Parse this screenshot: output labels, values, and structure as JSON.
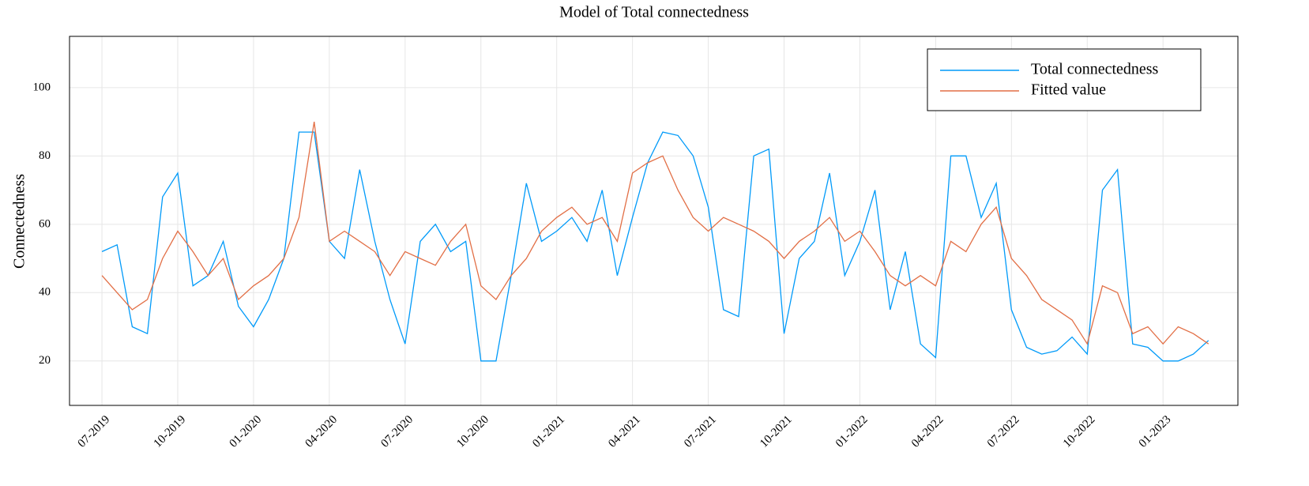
{
  "chart_data": {
    "type": "line",
    "title": "Model of Total connectedness",
    "ylabel": "Connectedness",
    "x": [
      2019.5,
      2019.55,
      2019.6,
      2019.65,
      2019.7,
      2019.75,
      2019.8,
      2019.85,
      2019.9,
      2019.95,
      2020.0,
      2020.05,
      2020.1,
      2020.15,
      2020.2,
      2020.25,
      2020.3,
      2020.35,
      2020.4,
      2020.45,
      2020.5,
      2020.55,
      2020.6,
      2020.65,
      2020.7,
      2020.75,
      2020.8,
      2020.85,
      2020.9,
      2020.95,
      2021.0,
      2021.05,
      2021.1,
      2021.15,
      2021.2,
      2021.25,
      2021.3,
      2021.35,
      2021.4,
      2021.45,
      2021.5,
      2021.55,
      2021.6,
      2021.65,
      2021.7,
      2021.75,
      2021.8,
      2021.85,
      2021.9,
      2021.95,
      2022.0,
      2022.05,
      2022.1,
      2022.15,
      2022.2,
      2022.25,
      2022.3,
      2022.35,
      2022.4,
      2022.45,
      2022.5,
      2022.55,
      2022.6,
      2022.65,
      2022.7,
      2022.75,
      2022.8,
      2022.85,
      2022.9,
      2022.95,
      2023.0,
      2023.05,
      2023.1,
      2023.15
    ],
    "series": [
      {
        "name": "Total connectedness",
        "color": "#009af9",
        "values": [
          52,
          54,
          30,
          28,
          68,
          75,
          42,
          45,
          55,
          36,
          30,
          38,
          50,
          87,
          87,
          55,
          50,
          76,
          55,
          38,
          25,
          55,
          60,
          52,
          55,
          20,
          20,
          45,
          72,
          55,
          58,
          62,
          55,
          70,
          45,
          62,
          78,
          87,
          86,
          80,
          65,
          35,
          33,
          80,
          82,
          28,
          50,
          55,
          75,
          45,
          55,
          70,
          35,
          52,
          25,
          21,
          80,
          80,
          62,
          72,
          35,
          24,
          22,
          23,
          27,
          22,
          70,
          76,
          25,
          24,
          20,
          20,
          22,
          26
        ]
      },
      {
        "name": "Fitted value",
        "color": "#e26f46",
        "values": [
          45,
          40,
          35,
          38,
          50,
          58,
          52,
          45,
          50,
          38,
          42,
          45,
          50,
          62,
          90,
          55,
          58,
          55,
          52,
          45,
          52,
          50,
          48,
          55,
          60,
          42,
          38,
          45,
          50,
          58,
          62,
          65,
          60,
          62,
          55,
          75,
          78,
          80,
          70,
          62,
          58,
          62,
          60,
          58,
          55,
          50,
          55,
          58,
          62,
          55,
          58,
          52,
          45,
          42,
          45,
          42,
          55,
          52,
          60,
          65,
          50,
          45,
          38,
          35,
          32,
          25,
          42,
          40,
          28,
          30,
          25,
          30,
          28,
          25
        ]
      }
    ],
    "xlim": [
      2019.393,
      2023.247
    ],
    "ylim": [
      7,
      115
    ],
    "xticks": [
      {
        "value": 2019.5,
        "label": "07-2019"
      },
      {
        "value": 2019.75,
        "label": "10-2019"
      },
      {
        "value": 2020.0,
        "label": "01-2020"
      },
      {
        "value": 2020.25,
        "label": "04-2020"
      },
      {
        "value": 2020.5,
        "label": "07-2020"
      },
      {
        "value": 2020.75,
        "label": "10-2020"
      },
      {
        "value": 2021.0,
        "label": "01-2021"
      },
      {
        "value": 2021.25,
        "label": "04-2021"
      },
      {
        "value": 2021.5,
        "label": "07-2021"
      },
      {
        "value": 2021.75,
        "label": "10-2021"
      },
      {
        "value": 2022.0,
        "label": "01-2022"
      },
      {
        "value": 2022.25,
        "label": "04-2022"
      },
      {
        "value": 2022.5,
        "label": "07-2022"
      },
      {
        "value": 2022.75,
        "label": "10-2022"
      },
      {
        "value": 2023.0,
        "label": "01-2023"
      }
    ],
    "yticks": [
      20,
      40,
      60,
      80,
      100
    ],
    "grid": true,
    "legend": "top-right"
  }
}
